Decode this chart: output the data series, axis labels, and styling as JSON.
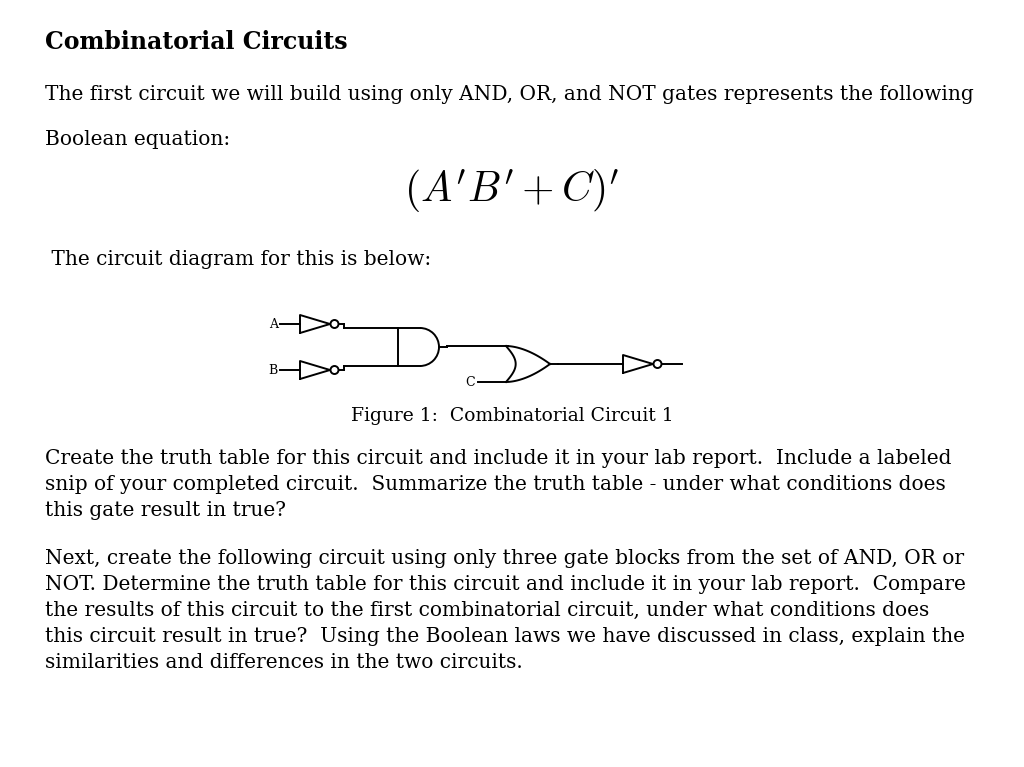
{
  "title": "Combinatorial Circuits",
  "title_fontsize": 17,
  "title_fontweight": "bold",
  "body_fontsize": 14.5,
  "caption_fontsize": 13.5,
  "formula_fontsize": 30,
  "line1": "The first circuit we will build using only AND, OR, and NOT gates represents the following",
  "line2": "Boolean equation:",
  "line3": " The circuit diagram for this is below:",
  "caption": "Figure 1:  Combinatorial Circuit 1",
  "para1_l1": "Create the truth table for this circuit and include it in your lab report.  Include a labeled",
  "para1_l2": "snip of your completed circuit.  Summarize the truth table - under what conditions does",
  "para1_l3": "this gate result in true?",
  "para2_l1": "Next, create the following circuit using only three gate blocks from the set of AND, OR or",
  "para2_l2": "NOT. Determine the truth table for this circuit and include it in your lab report.  Compare",
  "para2_l3": "the results of this circuit to the first combinatorial circuit, under what conditions does",
  "para2_l4": "this circuit result in true?  Using the Boolean laws we have discussed in class, explain the",
  "para2_l5": "similarities and differences in the two circuits.",
  "bg_color": "#ffffff",
  "text_color": "#000000",
  "gate_color": "#000000",
  "gate_lw": 1.4
}
